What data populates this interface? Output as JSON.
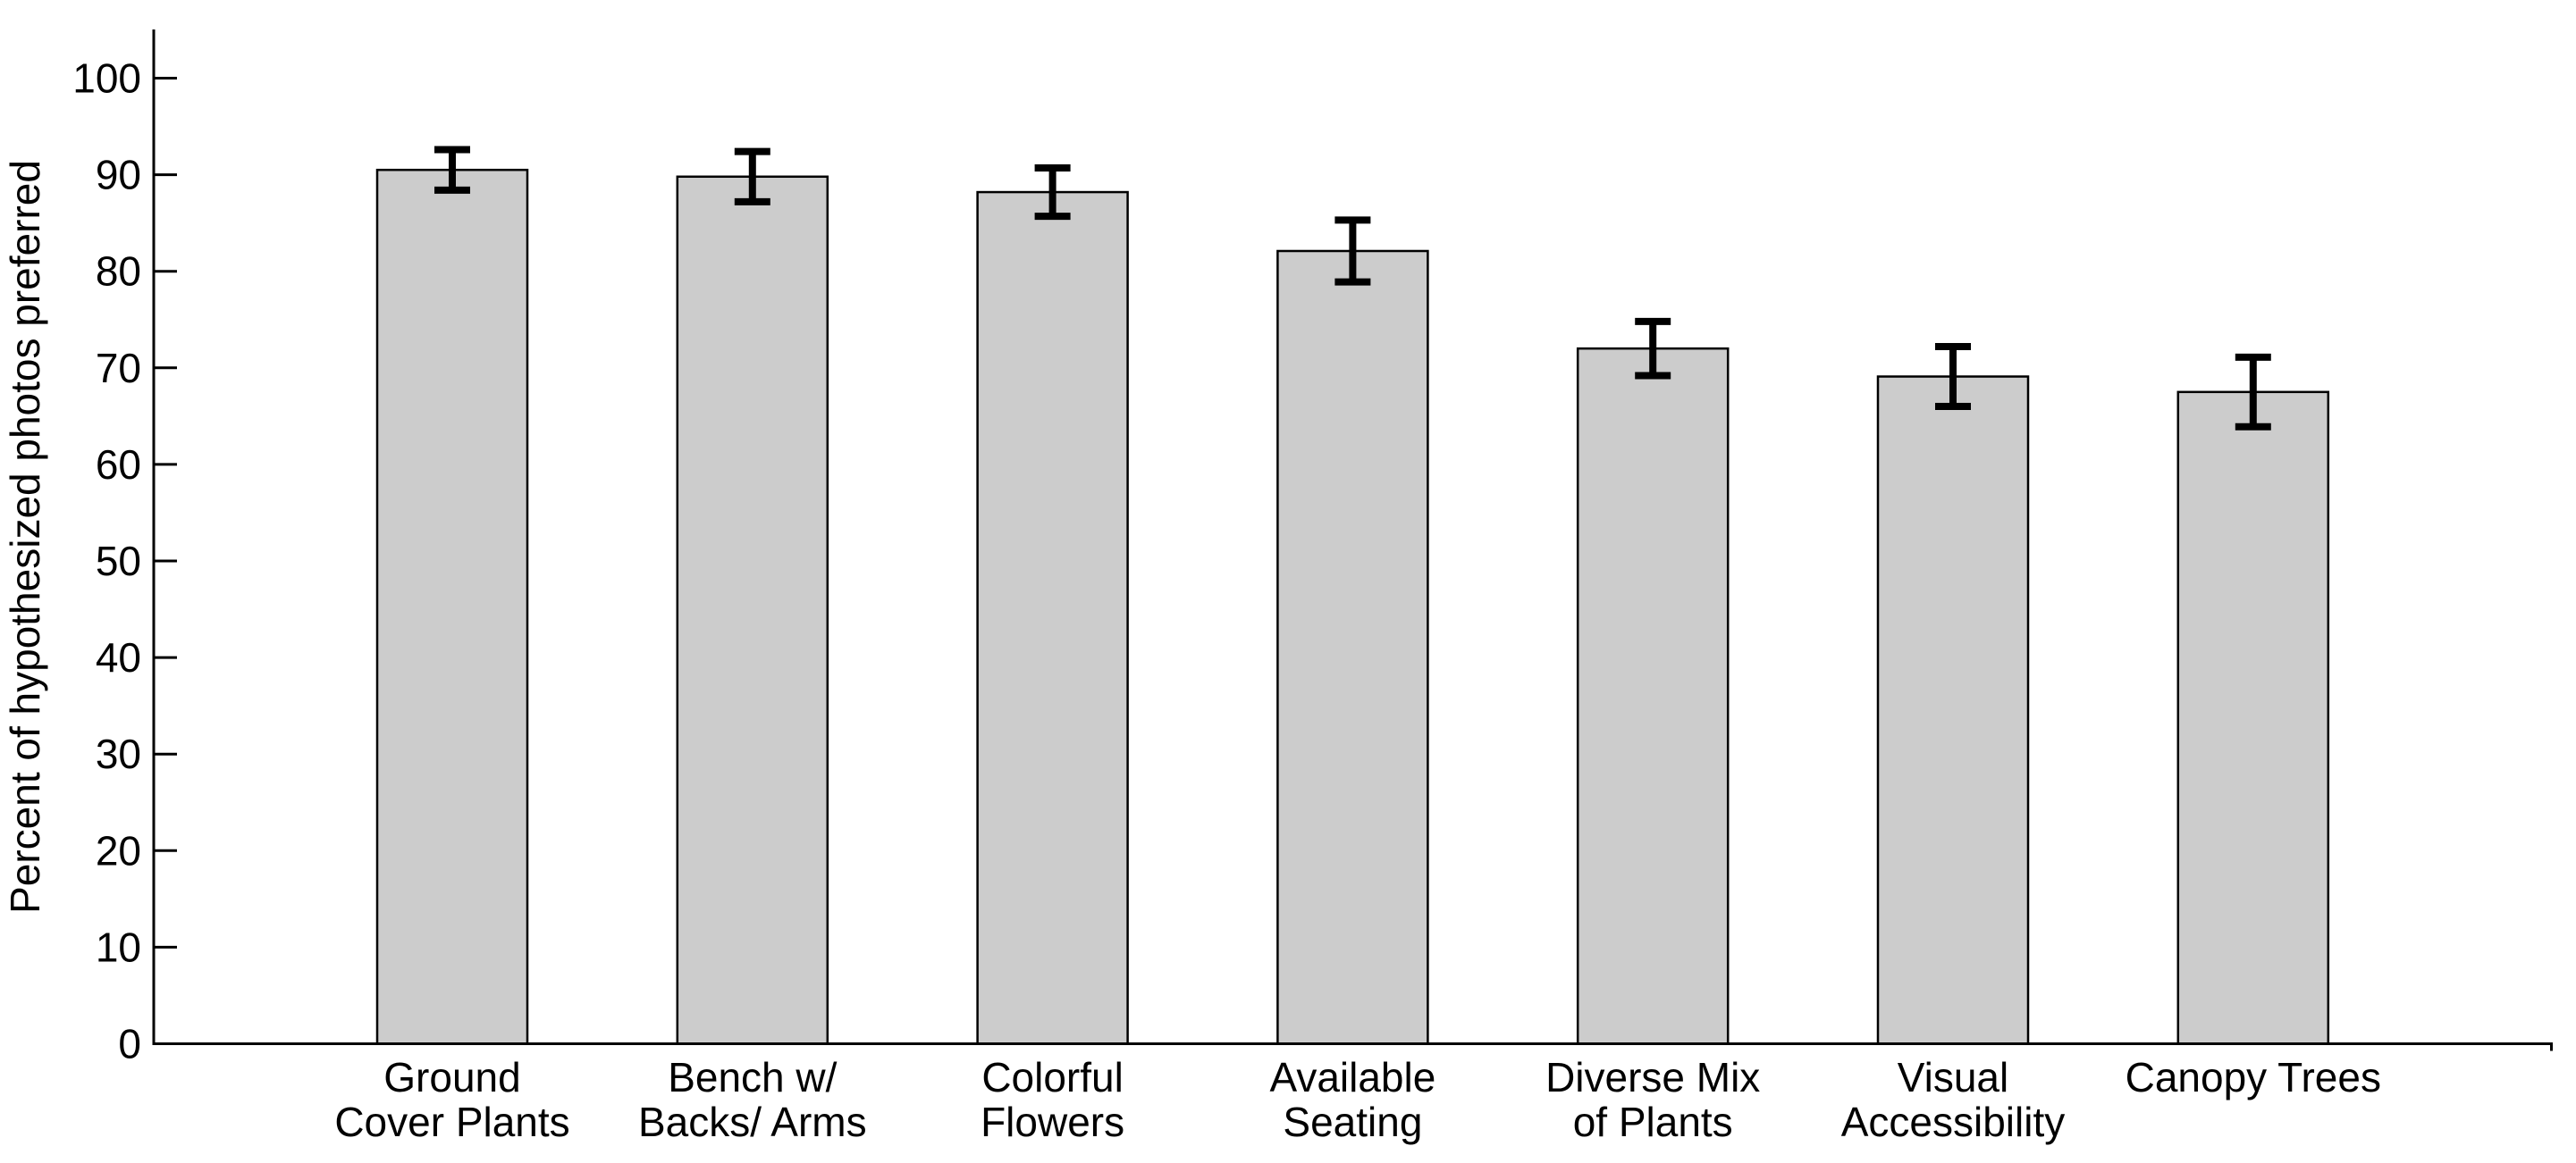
{
  "chart_data": {
    "type": "bar",
    "title": "",
    "xlabel": "",
    "ylabel": "Percent of hypothesized photos preferred",
    "categories": [
      "Ground\nCover Plants",
      "Bench w/\nBacks/ Arms",
      "Colorful\nFlowers",
      "Available\nSeating",
      "Diverse Mix\nof Plants",
      "Visual\nAccessibility",
      "Canopy Trees"
    ],
    "values": [
      90.5,
      89.8,
      88.2,
      82.1,
      72.0,
      69.1,
      67.5
    ],
    "error_bars": [
      2.1,
      2.6,
      2.5,
      3.2,
      2.8,
      3.1,
      3.6
    ],
    "ylim": [
      0,
      100
    ],
    "ytick_step": 10,
    "yticks": [
      0,
      10,
      20,
      30,
      40,
      50,
      60,
      70,
      80,
      90,
      100
    ],
    "grid": false,
    "legend": null,
    "colors": {
      "bar_fill": "#cccccc",
      "bar_edge": "#000000",
      "error_bar": "#000000",
      "axis": "#000000",
      "text": "#000000",
      "background": "#ffffff"
    }
  }
}
